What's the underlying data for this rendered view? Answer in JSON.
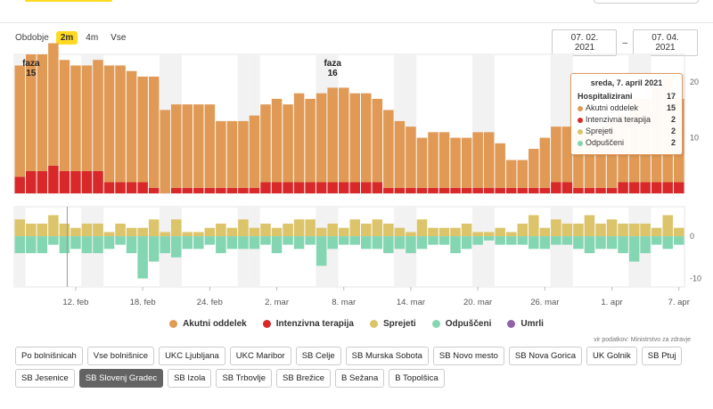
{
  "header": {},
  "period": {
    "label": "Obdobje",
    "options": [
      "2m",
      "4m",
      "Vse"
    ],
    "active": "2m"
  },
  "date_range": {
    "from": "07. 02. 2021",
    "separator": "–",
    "to": "07. 04. 2021"
  },
  "colors": {
    "akutni": "#e09a56",
    "intenzivna": "#d8282a",
    "sprejeti": "#dcc46a",
    "odpusceni": "#84d6b2",
    "umrli": "#8e63a8",
    "weekend": "#f2f2f2"
  },
  "chart_data": {
    "type": "bar",
    "x": [
      "2021-02-07",
      "2021-02-08",
      "2021-02-09",
      "2021-02-10",
      "2021-02-11",
      "2021-02-12",
      "2021-02-13",
      "2021-02-14",
      "2021-02-15",
      "2021-02-16",
      "2021-02-17",
      "2021-02-18",
      "2021-02-19",
      "2021-02-20",
      "2021-02-21",
      "2021-02-22",
      "2021-02-23",
      "2021-02-24",
      "2021-02-25",
      "2021-02-26",
      "2021-02-27",
      "2021-02-28",
      "2021-03-01",
      "2021-03-02",
      "2021-03-03",
      "2021-03-04",
      "2021-03-05",
      "2021-03-06",
      "2021-03-07",
      "2021-03-08",
      "2021-03-09",
      "2021-03-10",
      "2021-03-11",
      "2021-03-12",
      "2021-03-13",
      "2021-03-14",
      "2021-03-15",
      "2021-03-16",
      "2021-03-17",
      "2021-03-18",
      "2021-03-19",
      "2021-03-20",
      "2021-03-21",
      "2021-03-22",
      "2021-03-23",
      "2021-03-24",
      "2021-03-25",
      "2021-03-26",
      "2021-03-27",
      "2021-03-28",
      "2021-03-29",
      "2021-03-30",
      "2021-03-31",
      "2021-04-01",
      "2021-04-02",
      "2021-04-03",
      "2021-04-04",
      "2021-04-05",
      "2021-04-06",
      "2021-04-07"
    ],
    "x_tick_labels": [
      "12. feb",
      "18. feb",
      "24. feb",
      "2. mar",
      "8. mar",
      "14. mar",
      "20. mar",
      "26. mar",
      "1. apr",
      "7. apr"
    ],
    "x_tick_dates": [
      "2021-02-12",
      "2021-02-18",
      "2021-02-24",
      "2021-03-02",
      "2021-03-08",
      "2021-03-14",
      "2021-03-20",
      "2021-03-26",
      "2021-04-01",
      "2021-04-07"
    ],
    "top_panel": {
      "ylim": [
        0,
        25
      ],
      "y_ticks": [
        10,
        20
      ],
      "series": [
        {
          "name": "Akutni oddelek",
          "values": [
            20,
            21,
            21,
            22,
            20,
            19,
            19,
            20,
            21,
            21,
            20,
            19,
            20,
            15,
            15,
            15,
            15,
            15,
            12,
            12,
            12,
            13,
            14,
            15,
            14,
            16,
            15,
            16,
            17,
            17,
            16,
            16,
            15,
            14,
            12,
            11,
            9,
            10,
            10,
            9,
            9,
            10,
            10,
            8,
            5,
            5,
            7,
            9,
            10,
            10,
            10,
            10,
            11,
            12,
            12,
            15,
            15,
            17,
            19,
            15
          ]
        },
        {
          "name": "Intenzivna terapija",
          "values": [
            3,
            4,
            4,
            5,
            4,
            4,
            4,
            4,
            2,
            2,
            2,
            2,
            1,
            0,
            1,
            1,
            1,
            1,
            1,
            1,
            1,
            1,
            2,
            2,
            2,
            2,
            2,
            2,
            2,
            2,
            2,
            2,
            2,
            1,
            1,
            1,
            1,
            1,
            1,
            1,
            1,
            1,
            1,
            1,
            1,
            1,
            1,
            1,
            2,
            2,
            1,
            1,
            1,
            1,
            2,
            2,
            2,
            2,
            2,
            2
          ]
        }
      ],
      "phase_markers": [
        {
          "label": "faza",
          "number": "15",
          "date": "2021-02-08"
        },
        {
          "label": "faza",
          "number": "16",
          "date": "2021-03-07"
        }
      ]
    },
    "bottom_panel": {
      "ylim": [
        -12,
        7
      ],
      "y_ticks": [
        0,
        -10
      ],
      "series": [
        {
          "name": "Sprejeti",
          "values": [
            4,
            3,
            3,
            5,
            3,
            2,
            3,
            3,
            1,
            3,
            2,
            2,
            4,
            1,
            4,
            1,
            1,
            2,
            3,
            2,
            4,
            2,
            3,
            2,
            3,
            4,
            4,
            2,
            3,
            2,
            4,
            3,
            4,
            3,
            2,
            1,
            4,
            2,
            2,
            2,
            3,
            1,
            1,
            2,
            1,
            3,
            5,
            2,
            4,
            3,
            3,
            5,
            3,
            4,
            3,
            3,
            3,
            2,
            5,
            2
          ]
        },
        {
          "name": "Odpuščeni",
          "values": [
            -4,
            -4,
            -4,
            -2,
            -4,
            -3,
            -4,
            -4,
            -3,
            -2,
            -4,
            -10,
            -6,
            -4,
            -5,
            -3,
            -3,
            -2,
            -4,
            -3,
            -3,
            -3,
            -2,
            -4,
            -2,
            -3,
            -2,
            -7,
            -3,
            -2,
            -2,
            -3,
            -3,
            -4,
            -3,
            -4,
            -3,
            -2,
            -2,
            -4,
            -3,
            -2,
            -1,
            -2,
            -2,
            -2,
            -3,
            -3,
            -2,
            -2,
            -3,
            -4,
            -3,
            -3,
            -4,
            -6,
            -4,
            -2,
            -3,
            -2
          ]
        },
        {
          "name": "Umrli",
          "values": [
            0,
            0,
            0,
            0,
            0,
            0,
            0,
            0,
            0,
            0,
            0,
            0,
            0,
            0,
            0,
            0,
            0,
            0,
            0,
            0,
            0,
            0,
            0,
            0,
            0,
            0,
            0,
            0,
            0,
            0,
            0,
            0,
            0,
            0,
            0,
            0,
            0,
            0,
            0,
            0,
            0,
            0,
            0,
            0,
            0,
            0,
            0,
            0,
            0,
            0,
            0,
            0,
            0,
            0,
            0,
            0,
            0,
            0,
            0,
            0
          ]
        }
      ]
    },
    "legend": [
      "Akutni oddelek",
      "Intenzivna terapija",
      "Sprejeti",
      "Odpuščeni",
      "Umrli"
    ]
  },
  "tooltip": {
    "title": "sreda, 7. april 2021",
    "rows": [
      {
        "label": "Hospitalizirani",
        "value": "17"
      },
      {
        "label": "Akutni oddelek",
        "value": "15"
      },
      {
        "label": "Intenzivna terapija",
        "value": "2"
      },
      {
        "label": "Sprejeti",
        "value": "2"
      },
      {
        "label": "Odpuščeni",
        "value": "2"
      }
    ]
  },
  "source": "vir podatkov: Ministrstvo za zdravje",
  "filters": {
    "buttons": [
      "Po bolnišnicah",
      "Vse bolnišnice",
      "UKC Ljubljana",
      "UKC Maribor",
      "SB Celje",
      "SB Murska Sobota",
      "SB Novo mesto",
      "SB Nova Gorica",
      "UK Golnik",
      "SB Ptuj",
      "SB Jesenice",
      "SB Slovenj Gradec",
      "SB Izola",
      "SB Trbovlje",
      "SB Brežice",
      "B Sežana",
      "B Topolšica"
    ],
    "active": "SB Slovenj Gradec"
  }
}
